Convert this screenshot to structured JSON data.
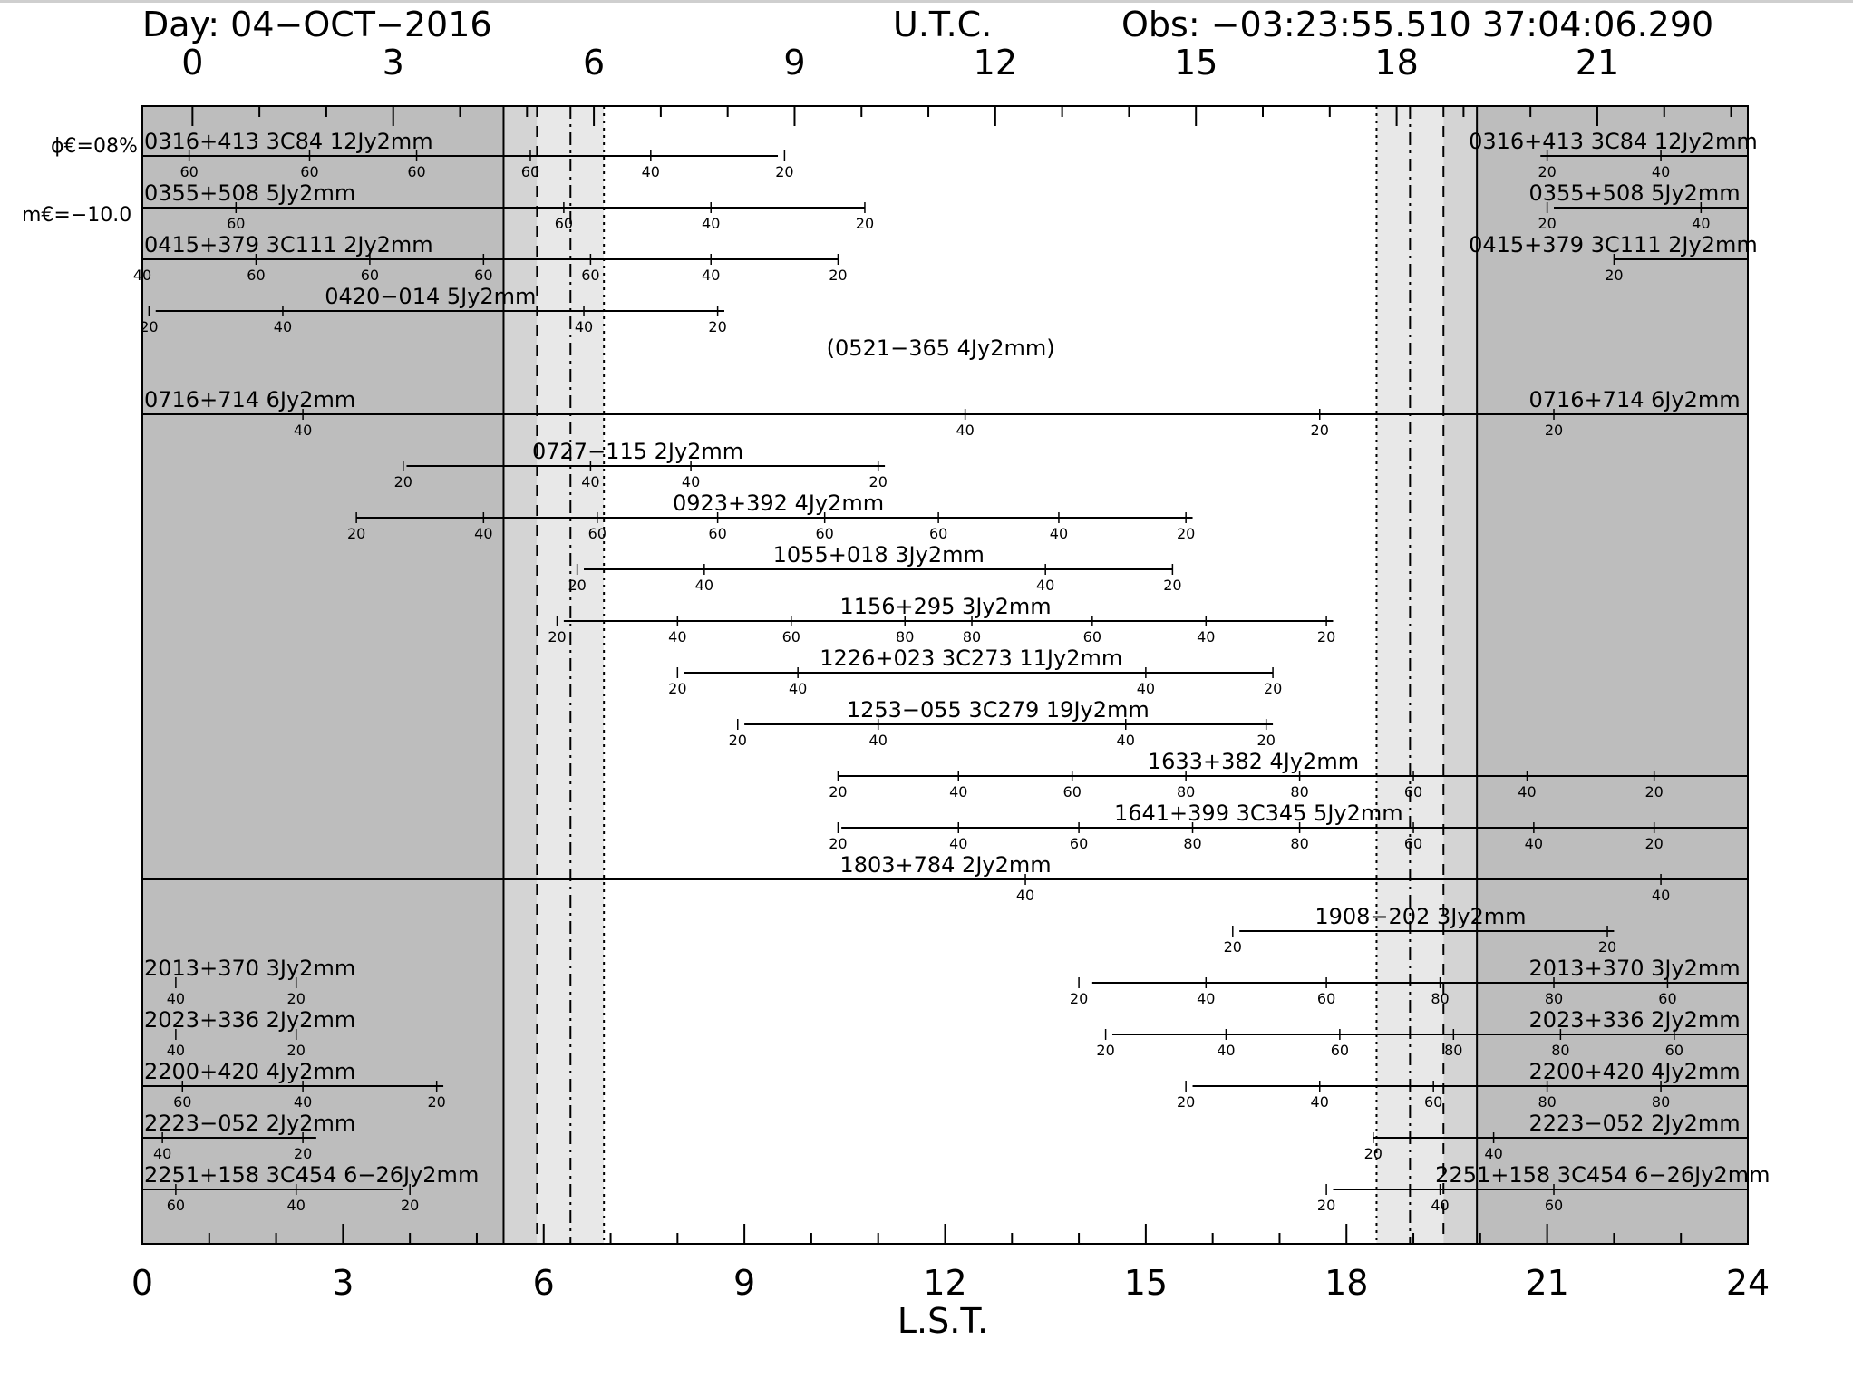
{
  "header": {
    "day": "Day: 04−OCT−2016",
    "utc": "U.T.C.",
    "obs": "Obs: −03:23:55.510 37:04:06.290"
  },
  "side_labels": {
    "phase": "ϕ€=08%",
    "moon": "m€=−10.0"
  },
  "colors": {
    "night": "#bdbdbd",
    "twilight_dark": "#d4d4d4",
    "twilight_light": "#e8e8e8",
    "day": "#ffffff",
    "ink": "#000000"
  },
  "chart_data": {
    "type": "source-visibility timeline",
    "xlabel": "L.S.T.",
    "x_range": [
      0,
      24
    ],
    "x_ticks": [
      "0",
      "3",
      "6",
      "9",
      "12",
      "15",
      "18",
      "21",
      "24"
    ],
    "utc_ticks": [
      "0",
      "3",
      "6",
      "9",
      "12",
      "15",
      "18",
      "21"
    ],
    "utc_tick_lst": [
      0.75,
      3.75,
      6.75,
      9.75,
      12.75,
      15.75,
      18.75,
      21.75
    ],
    "shading": {
      "night_until": 5.4,
      "twilight1_until": 5.9,
      "twilight2_until": 6.4,
      "twilight3_until": 6.9,
      "evening_start": 18.45,
      "evening_twilight2": 18.95,
      "evening_twilight3": 19.45,
      "night_from": 19.95
    },
    "sources": [
      {
        "label": "0316+413 3C84 12Jy2mm",
        "label_lst": 0.0,
        "label2": "0316+413 3C84 12Jy2mm",
        "label2_lst": 19.8,
        "bars": [
          [
            0,
            9.5
          ],
          [
            20.9,
            24
          ]
        ],
        "marks": [
          {
            "v": "60",
            "x": 0.7
          },
          {
            "v": "60",
            "x": 2.5
          },
          {
            "v": "60",
            "x": 4.1
          },
          {
            "v": "60",
            "x": 5.8
          },
          {
            "v": "40",
            "x": 7.6
          },
          {
            "v": "20",
            "x": 9.6
          },
          {
            "v": "20",
            "x": 21.0
          },
          {
            "v": "40",
            "x": 22.7
          }
        ]
      },
      {
        "label": "0355+508 5Jy2mm",
        "label_lst": 0.0,
        "label2": "0355+508 5Jy2mm",
        "label2_lst": 20.7,
        "bars": [
          [
            0,
            10.8
          ],
          [
            21.1,
            24
          ]
        ],
        "marks": [
          {
            "v": "60",
            "x": 1.4
          },
          {
            "v": "60",
            "x": 6.3
          },
          {
            "v": "40",
            "x": 8.5
          },
          {
            "v": "20",
            "x": 10.8
          },
          {
            "v": "20",
            "x": 21.0
          },
          {
            "v": "40",
            "x": 23.3
          }
        ]
      },
      {
        "label": "0415+379 3C111 2Jy2mm",
        "label_lst": 0.0,
        "label2": "0415+379 3C111 2Jy2mm",
        "label2_lst": 19.8,
        "bars": [
          [
            0,
            10.4
          ],
          [
            22.0,
            24
          ]
        ],
        "marks": [
          {
            "v": "40",
            "x": 0.0
          },
          {
            "v": "60",
            "x": 1.7
          },
          {
            "v": "60",
            "x": 3.4
          },
          {
            "v": "60",
            "x": 5.1
          },
          {
            "v": "60",
            "x": 6.7
          },
          {
            "v": "40",
            "x": 8.5
          },
          {
            "v": "20",
            "x": 10.4
          },
          {
            "v": "20",
            "x": 22.0
          }
        ]
      },
      {
        "label": "0420−014 5Jy2mm",
        "label_lst": 2.7,
        "bars": [
          [
            0.2,
            8.7
          ]
        ],
        "marks": [
          {
            "v": "20",
            "x": 0.1
          },
          {
            "v": "40",
            "x": 2.1
          },
          {
            "v": "40",
            "x": 6.6
          },
          {
            "v": "20",
            "x": 8.6
          }
        ]
      },
      {
        "label": "(0521−365 4Jy2mm)",
        "label_lst": 10.2,
        "bars": [],
        "marks": []
      },
      {
        "label": "0716+714 6Jy2mm",
        "label_lst": 0.0,
        "label2": "0716+714 6Jy2mm",
        "label2_lst": 20.7,
        "bars": [
          [
            0,
            24
          ]
        ],
        "marks": [
          {
            "v": "40",
            "x": 2.4
          },
          {
            "v": "40",
            "x": 12.3
          },
          {
            "v": "20",
            "x": 17.6
          },
          {
            "v": "20",
            "x": 21.1
          }
        ]
      },
      {
        "label": "0727−115 2Jy2mm",
        "label_lst": 5.8,
        "bars": [
          [
            3.95,
            11.1
          ]
        ],
        "marks": [
          {
            "v": "20",
            "x": 3.9
          },
          {
            "v": "40",
            "x": 6.7
          },
          {
            "v": "40",
            "x": 8.2
          },
          {
            "v": "20",
            "x": 11.0
          }
        ]
      },
      {
        "label": "0923+392 4Jy2mm",
        "label_lst": 7.9,
        "bars": [
          [
            3.2,
            15.7
          ]
        ],
        "marks": [
          {
            "v": "20",
            "x": 3.2
          },
          {
            "v": "40",
            "x": 5.1
          },
          {
            "v": "60",
            "x": 6.8
          },
          {
            "v": "60",
            "x": 8.6
          },
          {
            "v": "60",
            "x": 10.2
          },
          {
            "v": "60",
            "x": 11.9
          },
          {
            "v": "40",
            "x": 13.7
          },
          {
            "v": "20",
            "x": 15.6
          }
        ]
      },
      {
        "label": "1055+018 3Jy2mm",
        "label_lst": 9.4,
        "bars": [
          [
            6.6,
            15.4
          ]
        ],
        "marks": [
          {
            "v": "20",
            "x": 6.5
          },
          {
            "v": "40",
            "x": 8.4
          },
          {
            "v": "40",
            "x": 13.5
          },
          {
            "v": "20",
            "x": 15.4
          }
        ]
      },
      {
        "label": "1156+295 3Jy2mm",
        "label_lst": 10.4,
        "bars": [
          [
            6.3,
            17.8
          ]
        ],
        "marks": [
          {
            "v": "20",
            "x": 6.2
          },
          {
            "v": "40",
            "x": 8.0
          },
          {
            "v": "60",
            "x": 9.7
          },
          {
            "v": "80",
            "x": 11.4
          },
          {
            "v": "80",
            "x": 12.4
          },
          {
            "v": "60",
            "x": 14.2
          },
          {
            "v": "40",
            "x": 15.9
          },
          {
            "v": "20",
            "x": 17.7
          }
        ]
      },
      {
        "label": "1226+023 3C273 11Jy2mm",
        "label_lst": 10.1,
        "bars": [
          [
            8.1,
            16.9
          ]
        ],
        "marks": [
          {
            "v": "20",
            "x": 8.0
          },
          {
            "v": "40",
            "x": 9.8
          },
          {
            "v": "40",
            "x": 15.0
          },
          {
            "v": "20",
            "x": 16.9
          }
        ]
      },
      {
        "label": "1253−055 3C279 19Jy2mm",
        "label_lst": 10.5,
        "bars": [
          [
            9.0,
            16.9
          ]
        ],
        "marks": [
          {
            "v": "20",
            "x": 8.9
          },
          {
            "v": "40",
            "x": 11.0
          },
          {
            "v": "40",
            "x": 14.7
          },
          {
            "v": "20",
            "x": 16.8
          }
        ]
      },
      {
        "label": "1633+382 4Jy2mm",
        "label_lst": 15.0,
        "bars": [
          [
            10.4,
            24
          ]
        ],
        "marks": [
          {
            "v": "20",
            "x": 10.4
          },
          {
            "v": "40",
            "x": 12.2
          },
          {
            "v": "60",
            "x": 13.9
          },
          {
            "v": "80",
            "x": 15.6
          },
          {
            "v": "80",
            "x": 17.3
          },
          {
            "v": "60",
            "x": 19.0
          },
          {
            "v": "40",
            "x": 20.7
          },
          {
            "v": "20",
            "x": 22.6
          }
        ]
      },
      {
        "label": "1641+399 3C345 5Jy2mm",
        "label_lst": 14.5,
        "bars": [
          [
            10.45,
            24
          ]
        ],
        "marks": [
          {
            "v": "20",
            "x": 10.4
          },
          {
            "v": "40",
            "x": 12.2
          },
          {
            "v": "60",
            "x": 14.0
          },
          {
            "v": "80",
            "x": 15.7
          },
          {
            "v": "80",
            "x": 17.3
          },
          {
            "v": "60",
            "x": 19.0
          },
          {
            "v": "40",
            "x": 20.8
          },
          {
            "v": "20",
            "x": 22.6
          }
        ]
      },
      {
        "label": "1803+784 2Jy2mm",
        "label_lst": 10.4,
        "bars": [
          [
            0,
            24
          ]
        ],
        "marks": [
          {
            "v": "40",
            "x": 13.2
          },
          {
            "v": "40",
            "x": 22.7
          }
        ]
      },
      {
        "label": "1908−202 3Jy2mm",
        "label_lst": 17.5,
        "bars": [
          [
            16.4,
            22.0
          ]
        ],
        "marks": [
          {
            "v": "20",
            "x": 16.3
          },
          {
            "v": "20",
            "x": 21.9
          }
        ]
      },
      {
        "label": "2013+370 3Jy2mm",
        "label_lst": 0.0,
        "label2": "2013+370 3Jy2mm",
        "label2_lst": 20.7,
        "bars": [
          [
            14.2,
            24
          ]
        ],
        "marks": [
          {
            "v": "40",
            "x": 0.5
          },
          {
            "v": "20",
            "x": 2.3
          },
          {
            "v": "20",
            "x": 14.0
          },
          {
            "v": "40",
            "x": 15.9
          },
          {
            "v": "60",
            "x": 17.7
          },
          {
            "v": "80",
            "x": 19.4
          },
          {
            "v": "80",
            "x": 21.1
          },
          {
            "v": "60",
            "x": 22.8
          }
        ]
      },
      {
        "label": "2023+336 2Jy2mm",
        "label_lst": 0.0,
        "label2": "2023+336 2Jy2mm",
        "label2_lst": 20.7,
        "bars": [
          [
            14.5,
            24
          ]
        ],
        "marks": [
          {
            "v": "40",
            "x": 0.5
          },
          {
            "v": "20",
            "x": 2.3
          },
          {
            "v": "20",
            "x": 14.4
          },
          {
            "v": "40",
            "x": 16.2
          },
          {
            "v": "60",
            "x": 17.9
          },
          {
            "v": "80",
            "x": 19.6
          },
          {
            "v": "80",
            "x": 21.2
          },
          {
            "v": "60",
            "x": 22.9
          }
        ]
      },
      {
        "label": "2200+420 4Jy2mm",
        "label_lst": 0.0,
        "label2": "2200+420 4Jy2mm",
        "label2_lst": 20.7,
        "bars": [
          [
            0,
            4.5
          ],
          [
            15.7,
            24
          ]
        ],
        "marks": [
          {
            "v": "60",
            "x": 0.6
          },
          {
            "v": "40",
            "x": 2.4
          },
          {
            "v": "20",
            "x": 4.4
          },
          {
            "v": "20",
            "x": 15.6
          },
          {
            "v": "40",
            "x": 17.6
          },
          {
            "v": "60",
            "x": 19.3
          },
          {
            "v": "80",
            "x": 21.0
          },
          {
            "v": "80",
            "x": 22.7
          }
        ]
      },
      {
        "label": "2223−052 2Jy2mm",
        "label_lst": 0.0,
        "label2": "2223−052 2Jy2mm",
        "label2_lst": 20.7,
        "bars": [
          [
            0,
            2.6
          ],
          [
            18.4,
            24
          ]
        ],
        "marks": [
          {
            "v": "40",
            "x": 0.3
          },
          {
            "v": "20",
            "x": 2.4
          },
          {
            "v": "20",
            "x": 18.4
          },
          {
            "v": "40",
            "x": 20.2
          }
        ]
      },
      {
        "label": "2251+158 3C454 6−26Jy2mm",
        "label_lst": 0.0,
        "label2": "2251+158 3C454 6−26Jy2mm",
        "label2_lst": 19.3,
        "bars": [
          [
            0,
            3.9
          ],
          [
            17.8,
            24
          ]
        ],
        "marks": [
          {
            "v": "60",
            "x": 0.5
          },
          {
            "v": "40",
            "x": 2.3
          },
          {
            "v": "20",
            "x": 4.0
          },
          {
            "v": "20",
            "x": 17.7
          },
          {
            "v": "40",
            "x": 19.4
          },
          {
            "v": "60",
            "x": 21.1
          }
        ]
      }
    ]
  }
}
